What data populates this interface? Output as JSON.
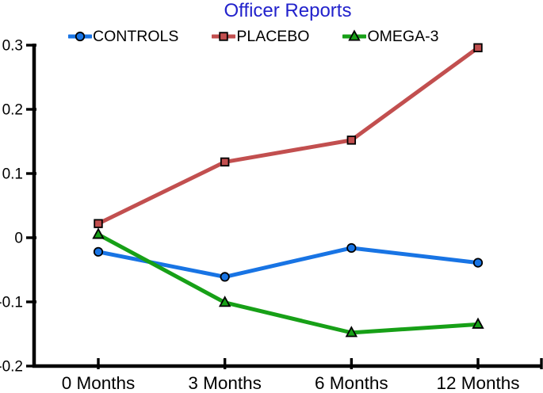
{
  "chart_data": {
    "type": "line",
    "title": "Officer Reports",
    "title_color": "#2222CC",
    "background_color": "#FFFFFF",
    "axis_color": "#000000",
    "tick_label_color": "#000000",
    "grid": false,
    "legend_position": "top",
    "x_categories": [
      "0 Months",
      "3 Months",
      "6 Months",
      "12 Months"
    ],
    "ylim": [
      -0.2,
      0.3
    ],
    "y_ticks": {
      "values": [
        0.3,
        0.2,
        0.1,
        0,
        -0.1,
        -0.2
      ],
      "labels": [
        "0.3",
        "0.2",
        "0.1",
        "0",
        "-0.1",
        "-0.2"
      ]
    },
    "series": [
      {
        "name": "CONTROLS",
        "color": "#1874E4",
        "marker": "circle",
        "values": [
          -0.022,
          -0.061,
          -0.016,
          -0.039
        ]
      },
      {
        "name": "PLACEBO",
        "color": "#C24F4F",
        "marker": "square",
        "values": [
          0.022,
          0.118,
          0.152,
          0.296
        ]
      },
      {
        "name": "OMEGA-3",
        "color": "#17A017",
        "marker": "triangle",
        "values": [
          0.005,
          -0.101,
          -0.148,
          -0.135
        ]
      }
    ]
  }
}
